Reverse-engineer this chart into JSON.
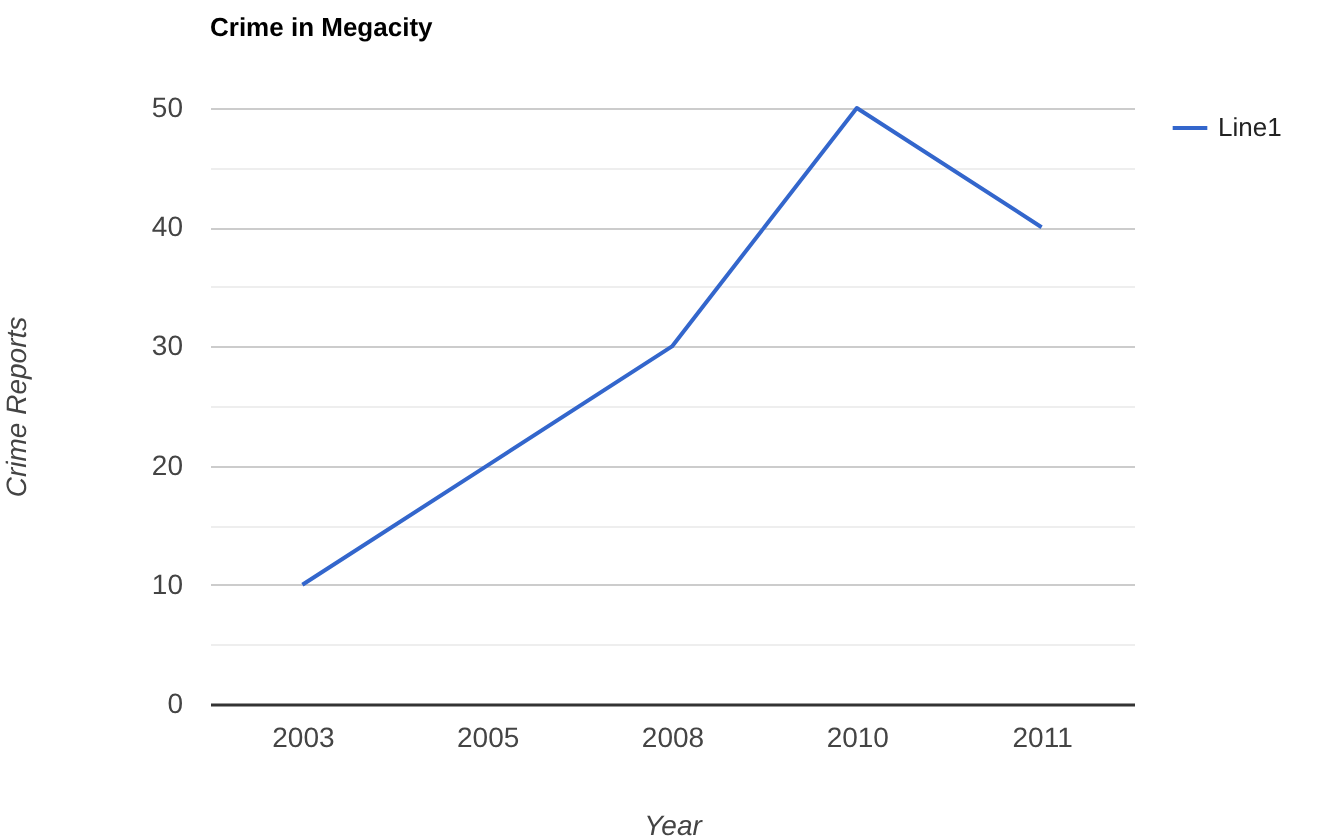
{
  "chart_data": {
    "type": "line",
    "title": "Crime in Megacity",
    "xlabel": "Year",
    "ylabel": "Crime Reports",
    "categories": [
      "2003",
      "2005",
      "2008",
      "2010",
      "2011"
    ],
    "series": [
      {
        "name": "Line1",
        "color": "#3366cc",
        "values": [
          10,
          20,
          30,
          50,
          40
        ]
      }
    ],
    "ylim": [
      0,
      50
    ],
    "yticks": [
      0,
      {
        "value": 5,
        "label": null
      },
      10,
      {
        "value": 15,
        "label": null
      },
      20,
      {
        "value": 25,
        "label": null
      },
      30,
      {
        "value": 35,
        "label": null
      },
      40,
      {
        "value": 45,
        "label": null
      },
      50
    ],
    "grid": "y",
    "legend": "top right",
    "marker": "none",
    "line_style": "solid"
  }
}
